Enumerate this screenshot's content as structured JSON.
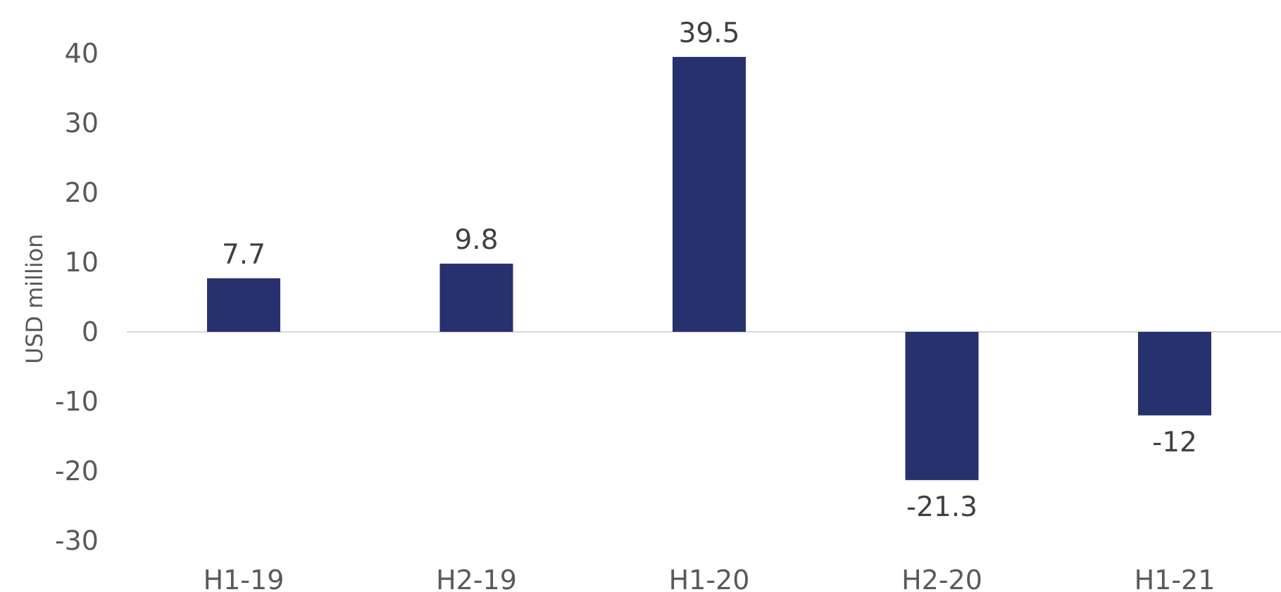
{
  "chart_data": {
    "type": "bar",
    "title": "",
    "xlabel": "",
    "ylabel": "USD million",
    "categories": [
      "H1-19",
      "H2-19",
      "H1-20",
      "H2-20",
      "H1-21"
    ],
    "values": [
      7.7,
      9.8,
      39.5,
      -21.3,
      -12
    ],
    "data_labels": [
      "7.7",
      "9.8",
      "39.5",
      "-21.3",
      "-12"
    ],
    "ylim": [
      -30,
      40
    ],
    "yticks": [
      40,
      30,
      20,
      10,
      0,
      -10,
      -20,
      -30
    ],
    "ytick_labels": [
      "40",
      "30",
      "20",
      "10",
      "0",
      "-10",
      "-20",
      "-30"
    ],
    "grid": false,
    "legend": "none",
    "colors": {
      "bar": "#27316E",
      "zero_line": "#D9D9D9"
    }
  }
}
